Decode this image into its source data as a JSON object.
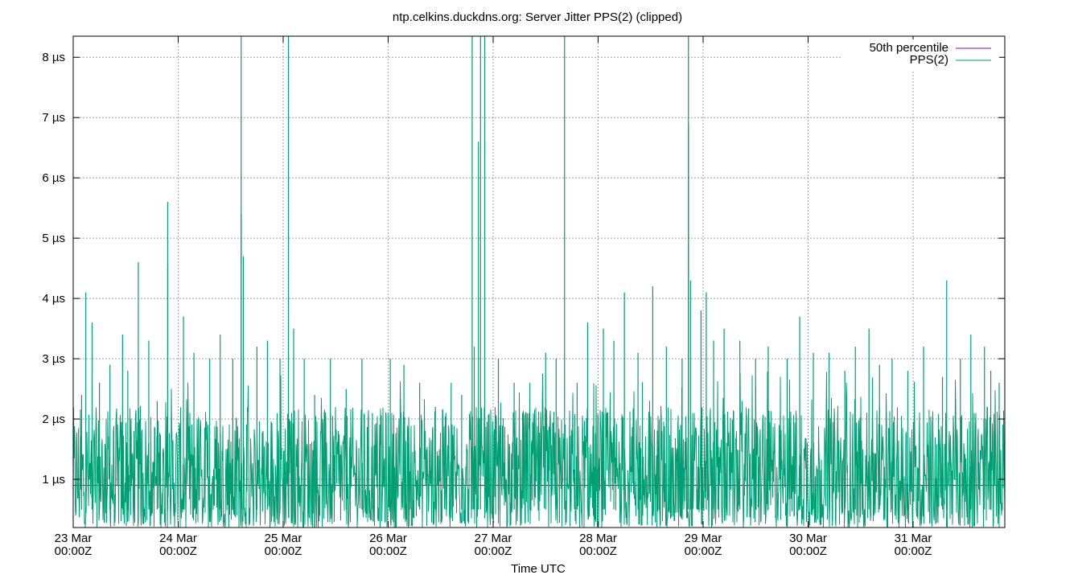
{
  "chart_data": {
    "type": "line",
    "title": "ntp.celkins.duckdns.org: Server Jitter PPS(2) (clipped)",
    "xlabel": "Time UTC",
    "ylabel": "",
    "y_unit": "µs",
    "xlim": [
      "2024-03-23T00:00Z",
      "2024-03-31T21:00Z"
    ],
    "ylim": [
      0.2,
      8.35
    ],
    "grid": true,
    "legend_position": "top-right",
    "x_ticks": [
      {
        "line1": "23 Mar",
        "line2": "00:00Z",
        "day": 0
      },
      {
        "line1": "24 Mar",
        "line2": "00:00Z",
        "day": 1
      },
      {
        "line1": "25 Mar",
        "line2": "00:00Z",
        "day": 2
      },
      {
        "line1": "26 Mar",
        "line2": "00:00Z",
        "day": 3
      },
      {
        "line1": "27 Mar",
        "line2": "00:00Z",
        "day": 4
      },
      {
        "line1": "28 Mar",
        "line2": "00:00Z",
        "day": 5
      },
      {
        "line1": "29 Mar",
        "line2": "00:00Z",
        "day": 6
      },
      {
        "line1": "30 Mar",
        "line2": "00:00Z",
        "day": 7
      },
      {
        "line1": "31 Mar",
        "line2": "00:00Z",
        "day": 8
      }
    ],
    "y_ticks": [
      {
        "label": "1 µs",
        "value": 1
      },
      {
        "label": "2 µs",
        "value": 2
      },
      {
        "label": "3 µs",
        "value": 3
      },
      {
        "label": "4 µs",
        "value": 4
      },
      {
        "label": "5 µs",
        "value": 5
      },
      {
        "label": "6 µs",
        "value": 6
      },
      {
        "label": "7 µs",
        "value": 7
      },
      {
        "label": "8 µs",
        "value": 8
      }
    ],
    "series": [
      {
        "name": "50th percentile",
        "color": "#9400d3",
        "values": [
          [
            0,
            0.9
          ],
          [
            8.875,
            0.9
          ]
        ]
      },
      {
        "name": "PPS(2)",
        "color": "#009e73",
        "baseline_range": [
          0.2,
          2.2
        ],
        "spikes": [
          [
            0.08,
            2.4
          ],
          [
            0.12,
            4.1
          ],
          [
            0.18,
            3.6
          ],
          [
            0.25,
            2.6
          ],
          [
            0.35,
            2.9
          ],
          [
            0.47,
            3.4
          ],
          [
            0.52,
            2.8
          ],
          [
            0.62,
            4.6
          ],
          [
            0.72,
            3.3
          ],
          [
            0.8,
            2.3
          ],
          [
            0.9,
            4.5
          ],
          [
            0.9,
            5.6
          ],
          [
            1.05,
            3.7
          ],
          [
            1.15,
            3.1
          ],
          [
            1.3,
            3.0
          ],
          [
            1.4,
            3.4
          ],
          [
            1.52,
            3.0
          ],
          [
            1.6,
            8.35
          ],
          [
            1.6,
            5.4
          ],
          [
            1.62,
            4.7
          ],
          [
            1.75,
            3.2
          ],
          [
            1.85,
            3.3
          ],
          [
            1.97,
            3.0
          ],
          [
            2.05,
            8.35
          ],
          [
            2.1,
            3.5
          ],
          [
            2.2,
            3.0
          ],
          [
            2.3,
            2.4
          ],
          [
            2.45,
            3.0
          ],
          [
            2.6,
            2.5
          ],
          [
            2.75,
            3.0
          ],
          [
            2.85,
            2.1
          ],
          [
            3.02,
            3.0
          ],
          [
            3.15,
            2.9
          ],
          [
            3.3,
            2.6
          ],
          [
            3.45,
            2.2
          ],
          [
            3.55,
            2.1
          ],
          [
            3.6,
            2.6
          ],
          [
            3.7,
            2.4
          ],
          [
            3.8,
            8.35
          ],
          [
            3.82,
            3.2
          ],
          [
            3.86,
            6.6
          ],
          [
            3.88,
            8.35
          ],
          [
            3.92,
            8.35
          ],
          [
            4.05,
            3.0
          ],
          [
            4.2,
            2.6
          ],
          [
            4.35,
            2.6
          ],
          [
            4.5,
            3.1
          ],
          [
            4.6,
            3.0
          ],
          [
            4.68,
            8.35
          ],
          [
            4.8,
            2.6
          ],
          [
            4.9,
            3.6
          ],
          [
            5.05,
            3.5
          ],
          [
            5.15,
            3.3
          ],
          [
            5.25,
            4.1
          ],
          [
            5.38,
            3.1
          ],
          [
            5.52,
            4.2
          ],
          [
            5.65,
            3.2
          ],
          [
            5.8,
            3.0
          ],
          [
            5.86,
            8.35
          ],
          [
            5.86,
            6.9
          ],
          [
            5.88,
            4.3
          ],
          [
            5.98,
            3.8
          ],
          [
            6.03,
            4.1
          ],
          [
            6.1,
            3.3
          ],
          [
            6.2,
            3.5
          ],
          [
            6.35,
            3.3
          ],
          [
            6.5,
            3.0
          ],
          [
            6.62,
            3.2
          ],
          [
            6.8,
            3.0
          ],
          [
            6.92,
            3.7
          ],
          [
            7.05,
            3.1
          ],
          [
            7.2,
            3.1
          ],
          [
            7.35,
            2.8
          ],
          [
            7.45,
            3.2
          ],
          [
            7.58,
            3.5
          ],
          [
            7.68,
            2.9
          ],
          [
            7.8,
            3.0
          ],
          [
            7.95,
            2.8
          ],
          [
            8.1,
            3.2
          ],
          [
            8.28,
            2.7
          ],
          [
            8.32,
            4.3
          ],
          [
            8.45,
            3.0
          ],
          [
            8.55,
            3.4
          ],
          [
            8.68,
            3.2
          ],
          [
            8.74,
            2.8
          ],
          [
            8.82,
            2.6
          ]
        ]
      }
    ]
  }
}
